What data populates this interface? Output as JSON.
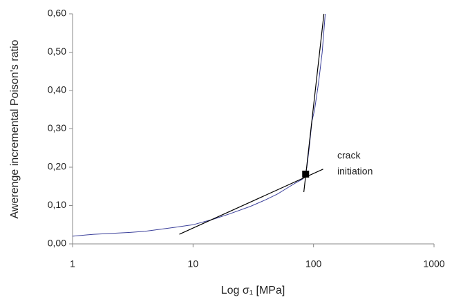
{
  "chart_data": {
    "type": "line",
    "xlabel": "Log σ₁ [MPa]",
    "ylabel": "Awerenge incremental Poison's ratio",
    "xscale": "log",
    "xlim": [
      1,
      1000
    ],
    "xticks": [
      1,
      10,
      100,
      1000
    ],
    "ylim": [
      0,
      0.6
    ],
    "yticks": [
      {
        "value": 0,
        "label": "0,00"
      },
      {
        "value": 0.1,
        "label": "0,10"
      },
      {
        "value": 0.2,
        "label": "0,20"
      },
      {
        "value": 0.3,
        "label": "0,30"
      },
      {
        "value": 0.4,
        "label": "0,40"
      },
      {
        "value": 0.5,
        "label": "0,50"
      },
      {
        "value": 0.6,
        "label": "0,60"
      }
    ],
    "grid": false,
    "series": [
      {
        "color": "#3a3f9a",
        "x": [
          1,
          1.5,
          2,
          3,
          4,
          5,
          7,
          10,
          15,
          20,
          30,
          40,
          50,
          60,
          70,
          80,
          85,
          88,
          92,
          97,
          102,
          110,
          118,
          125
        ],
        "values": [
          0.02,
          0.025,
          0.027,
          0.03,
          0.033,
          0.037,
          0.043,
          0.05,
          0.065,
          0.078,
          0.098,
          0.115,
          0.13,
          0.145,
          0.158,
          0.168,
          0.175,
          0.2,
          0.25,
          0.32,
          0.35,
          0.42,
          0.5,
          0.6
        ]
      },
      {
        "color": "#000000",
        "x": [
          7.7,
          120
        ],
        "values": [
          0.025,
          0.195
        ]
      },
      {
        "color": "#000000",
        "x": [
          83,
          122
        ],
        "values": [
          0.135,
          0.6
        ]
      }
    ],
    "marker": {
      "x": 86,
      "y": 0.182,
      "color": "#000000"
    },
    "annotation": [
      "crack",
      "initiation"
    ]
  }
}
